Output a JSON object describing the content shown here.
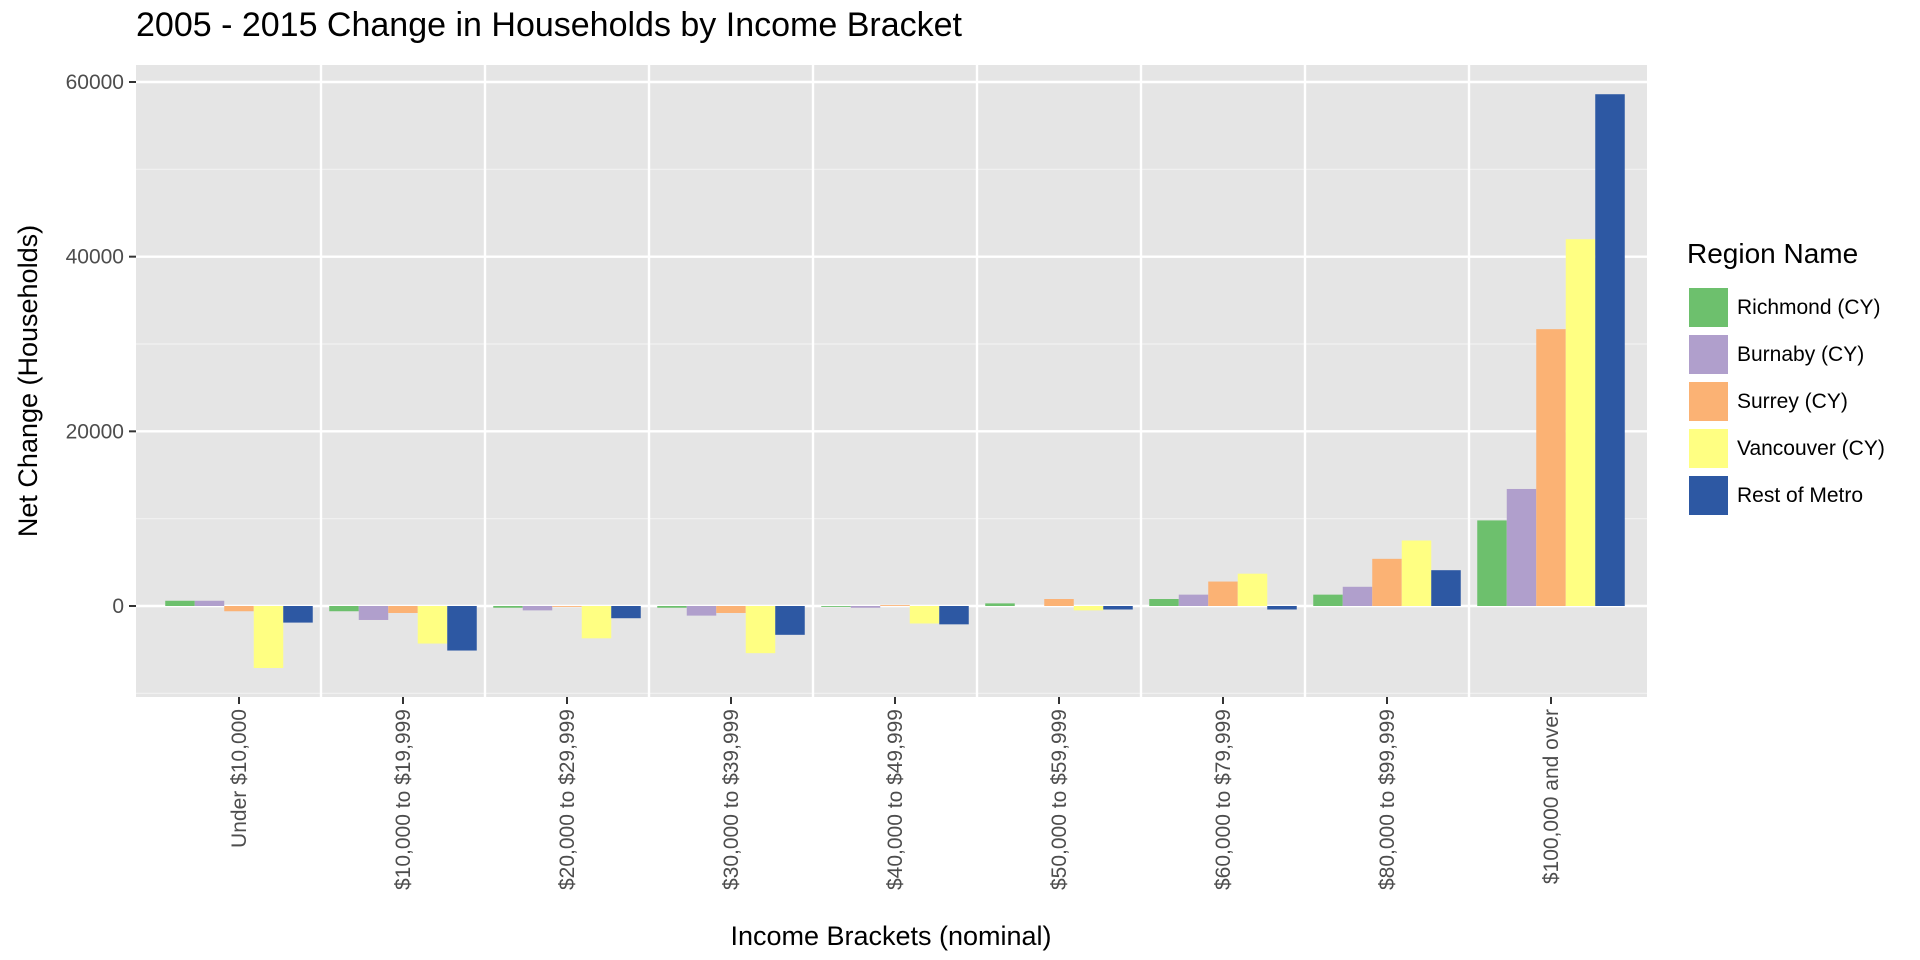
{
  "chart_data": {
    "type": "bar",
    "title": "2005 - 2015 Change in Households by Income Bracket",
    "xlabel": "Income Brackets (nominal)",
    "ylabel": "Net Change (Households)",
    "ylim": [
      -10000,
      60000
    ],
    "yticks": [
      0,
      20000,
      40000,
      60000
    ],
    "grid": true,
    "legend_title": "Region Name",
    "legend_position": "right",
    "categories": [
      "Under $10,000",
      "$10,000 to $19,999",
      "$20,000 to $29,999",
      "$30,000 to $39,999",
      "$40,000 to $49,999",
      "$50,000 to $59,999",
      "$60,000 to $79,999",
      "$80,000 to $99,999",
      "$100,000 and over"
    ],
    "series": [
      {
        "name": "Richmond (CY)",
        "color": "#6DC06D",
        "values": [
          600,
          -600,
          -200,
          -200,
          -100,
          300,
          800,
          1300,
          9800
        ]
      },
      {
        "name": "Burnaby (CY)",
        "color": "#B09FCC",
        "values": [
          600,
          -1600,
          -500,
          -1100,
          -200,
          0,
          1300,
          2200,
          13400
        ]
      },
      {
        "name": "Surrey (CY)",
        "color": "#FBB274",
        "values": [
          -600,
          -800,
          -100,
          -800,
          100,
          800,
          2800,
          5400,
          31700
        ]
      },
      {
        "name": "Vancouver (CY)",
        "color": "#FFFF82",
        "values": [
          -7100,
          -4300,
          -3700,
          -5400,
          -2000,
          -500,
          3700,
          7500,
          42000
        ]
      },
      {
        "name": "Rest of Metro",
        "color": "#2D58A3",
        "values": [
          -1900,
          -5100,
          -1400,
          -3300,
          -2100,
          -400,
          -400,
          4100,
          58600
        ]
      }
    ]
  }
}
